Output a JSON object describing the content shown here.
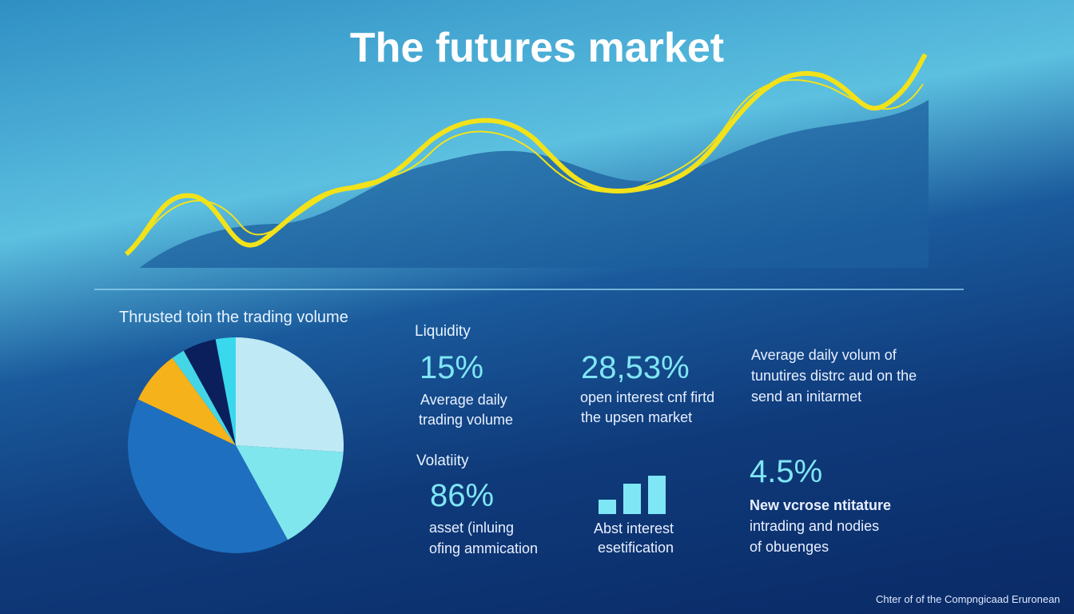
{
  "header": {
    "title": "The futures market"
  },
  "chart_data": {
    "type": "pie",
    "title": "Thrusted toin the trading volume",
    "values": [
      26,
      16,
      40,
      8,
      2,
      5,
      3
    ],
    "colors": [
      "#bfeaf5",
      "#7fe6ee",
      "#1e6fbf",
      "#f5b21a",
      "#44d6e6",
      "#0a1f5c",
      "#3ad8ee"
    ]
  },
  "stats": [
    {
      "heading": "Liquidity",
      "value": "15%",
      "lines": [
        "Average daily",
        "trading volume"
      ]
    },
    {
      "value": "28,53%",
      "lines": [
        "open interest cnf firtd",
        "the upsen market"
      ]
    },
    {
      "lines": [
        "Average daily volum of",
        "tunutires distrc aud on the",
        "send an initarmet"
      ]
    },
    {
      "heading": "Volatiity",
      "value": "86%",
      "lines": [
        "asset (inluing",
        "ofing ammication"
      ]
    },
    {
      "lines": [
        "Abst interest",
        "esetification"
      ]
    },
    {
      "value": "4.5%",
      "lines": [
        "New vcrose ntitature",
        "intrading and nodies",
        "of obuenges"
      ]
    }
  ],
  "footer": "Chter of of the Compngicaad Eruronean"
}
